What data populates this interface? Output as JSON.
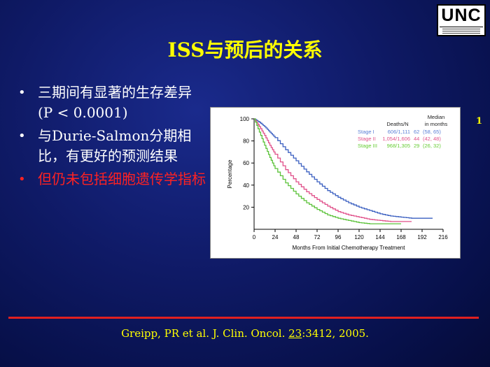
{
  "logo": {
    "text": "UNC",
    "subtitle": "LINEBERGER COMPREHENSIVE CANCER CENTER"
  },
  "title": "ISS与预后的关系",
  "page_number": "1",
  "bullets": [
    {
      "text": "三期间有显著的生存差异 (P < 0.0001)",
      "color": "#ffffff"
    },
    {
      "text": "与Durie-Salmon分期相比，有更好的预测结果",
      "color": "#ffffff"
    },
    {
      "text": "但仍未包括细胞遗传学指标",
      "color": "#ff2222"
    }
  ],
  "bullet_symbol": "•",
  "citation": {
    "pre": "Greipp, PR et al. J. Clin. Oncol. ",
    "volume": "23",
    "post": ":3412, 2005."
  },
  "chart_data": {
    "type": "line",
    "xlabel": "Months From Initial Chemotherapy Treatment",
    "ylabel": "Percentage",
    "xlim": [
      0,
      216
    ],
    "ylim": [
      0,
      100
    ],
    "xticks": [
      0,
      24,
      48,
      72,
      96,
      120,
      144,
      168,
      192,
      216
    ],
    "yticks": [
      20,
      40,
      60,
      80,
      100
    ],
    "legend": {
      "position": "top-right",
      "header_deaths": "Deaths/N",
      "header_median": "Median",
      "header_median_sub": "in months",
      "rows": [
        {
          "stage": "Stage I",
          "deaths_n": "606/1,111",
          "median": "62",
          "ci": "(58, 65)",
          "color": "#5a7fd6"
        },
        {
          "stage": "Stage II",
          "deaths_n": "1,054/1,606",
          "median": "44",
          "ci": "(42, 48)",
          "color": "#e0508a"
        },
        {
          "stage": "Stage III",
          "deaths_n": "968/1,305",
          "median": "29",
          "ci": "(26, 32)",
          "color": "#66cc33"
        }
      ]
    },
    "series": [
      {
        "name": "Stage I",
        "color": "#3a5fc0",
        "x": [
          0,
          6,
          12,
          18,
          24,
          36,
          48,
          60,
          72,
          84,
          96,
          108,
          120,
          132,
          144,
          156,
          168,
          180,
          192,
          204
        ],
        "y": [
          100,
          97,
          93,
          88,
          83,
          72,
          62,
          52,
          43,
          35,
          29,
          24,
          20,
          17,
          14,
          12,
          11,
          10,
          10,
          10
        ]
      },
      {
        "name": "Stage II",
        "color": "#e0508a",
        "x": [
          0,
          6,
          12,
          18,
          24,
          36,
          48,
          60,
          72,
          84,
          96,
          108,
          120,
          132,
          144,
          156,
          168,
          180
        ],
        "y": [
          100,
          93,
          85,
          76,
          68,
          54,
          43,
          34,
          27,
          21,
          16,
          13,
          11,
          9,
          8,
          7,
          7,
          7
        ]
      },
      {
        "name": "Stage III",
        "color": "#5cc23a",
        "x": [
          0,
          6,
          12,
          18,
          24,
          36,
          48,
          60,
          72,
          84,
          96,
          108,
          120,
          132,
          144,
          156,
          168
        ],
        "y": [
          100,
          88,
          76,
          65,
          55,
          42,
          32,
          24,
          18,
          13,
          10,
          8,
          6,
          5,
          5,
          5,
          5
        ]
      }
    ]
  }
}
